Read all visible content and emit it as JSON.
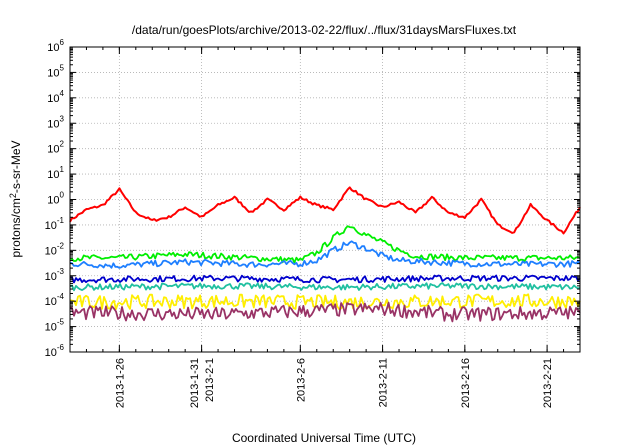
{
  "chart_data": {
    "type": "line",
    "title": "/data/run/goesPlots/archive/2013-02-22/flux/../flux/31daysMarsFluxes.txt",
    "xlabel": "Coordinated Universal Time (UTC)",
    "ylabel": "protons/cm²-s-sr-MeV",
    "y_scale": "log",
    "ylim": [
      1e-06,
      1000000.0
    ],
    "xlim": [
      "2013-01-23",
      "2013-02-23"
    ],
    "y_ticks": [
      "10^-6",
      "10^-5",
      "10^-4",
      "10^-3",
      "10^-2",
      "10^-1",
      "10^0",
      "10^1",
      "10^2",
      "10^3",
      "10^4",
      "10^5",
      "10^6"
    ],
    "x_ticks": [
      {
        "date": "2013-01-26",
        "lines": [
          "2013-1-26"
        ]
      },
      {
        "date": "2013-01-31",
        "lines": [
          "2013-1-31",
          "2013-2-1"
        ]
      },
      {
        "date": "2013-02-06",
        "lines": [
          "2013-2-6"
        ]
      },
      {
        "date": "2013-02-11",
        "lines": [
          "2013-2-11"
        ]
      },
      {
        "date": "2013-02-16",
        "lines": [
          "2013-2-16"
        ]
      },
      {
        "date": "2013-02-21",
        "lines": [
          "2013-2-21"
        ]
      }
    ],
    "grid": true,
    "legend": "none",
    "series": [
      {
        "color": "#ff0000",
        "base": 0.25,
        "variation": "oscillating",
        "points": [
          [
            "2013-01-23",
            0.15
          ],
          [
            "2013-01-24",
            0.4
          ],
          [
            "2013-01-25",
            0.6
          ],
          [
            "2013-01-26",
            2.5
          ],
          [
            "2013-01-27",
            0.3
          ],
          [
            "2013-01-28",
            0.15
          ],
          [
            "2013-01-29",
            0.2
          ],
          [
            "2013-01-30",
            0.5
          ],
          [
            "2013-01-31",
            0.2
          ],
          [
            "2013-02-01",
            0.6
          ],
          [
            "2013-02-02",
            1.2
          ],
          [
            "2013-02-03",
            0.3
          ],
          [
            "2013-02-04",
            1.0
          ],
          [
            "2013-02-05",
            0.4
          ],
          [
            "2013-02-06",
            1.2
          ],
          [
            "2013-02-07",
            0.6
          ],
          [
            "2013-02-08",
            0.4
          ],
          [
            "2013-02-09",
            3.0
          ],
          [
            "2013-02-10",
            1.0
          ],
          [
            "2013-02-11",
            0.5
          ],
          [
            "2013-02-12",
            0.8
          ],
          [
            "2013-02-13",
            0.3
          ],
          [
            "2013-02-14",
            1.2
          ],
          [
            "2013-02-15",
            0.3
          ],
          [
            "2013-02-16",
            0.2
          ],
          [
            "2013-02-17",
            1.0
          ],
          [
            "2013-02-18",
            0.1
          ],
          [
            "2013-02-19",
            0.05
          ],
          [
            "2013-02-20",
            0.6
          ],
          [
            "2013-02-21",
            0.15
          ],
          [
            "2013-02-22",
            0.05
          ],
          [
            "2013-02-23",
            0.5
          ]
        ]
      },
      {
        "color": "#00ee00",
        "points": [
          [
            "2013-01-23",
            0.005
          ],
          [
            "2013-01-26",
            0.005
          ],
          [
            "2013-01-30",
            0.007
          ],
          [
            "2013-02-03",
            0.005
          ],
          [
            "2013-02-06",
            0.004
          ],
          [
            "2013-02-07",
            0.008
          ],
          [
            "2013-02-08",
            0.03
          ],
          [
            "2013-02-09",
            0.1
          ],
          [
            "2013-02-10",
            0.04
          ],
          [
            "2013-02-11",
            0.02
          ],
          [
            "2013-02-12",
            0.01
          ],
          [
            "2013-02-13",
            0.006
          ],
          [
            "2013-02-16",
            0.005
          ],
          [
            "2013-02-20",
            0.005
          ],
          [
            "2013-02-23",
            0.005
          ]
        ]
      },
      {
        "color": "#1e7fff",
        "points": [
          [
            "2013-01-23",
            0.003
          ],
          [
            "2013-01-26",
            0.0025
          ],
          [
            "2013-01-30",
            0.0035
          ],
          [
            "2013-02-03",
            0.0028
          ],
          [
            "2013-02-06",
            0.003
          ],
          [
            "2013-02-07",
            0.004
          ],
          [
            "2013-02-08",
            0.01
          ],
          [
            "2013-02-09",
            0.02
          ],
          [
            "2013-02-10",
            0.012
          ],
          [
            "2013-02-11",
            0.006
          ],
          [
            "2013-02-12",
            0.004
          ],
          [
            "2013-02-16",
            0.003
          ],
          [
            "2013-02-20",
            0.0028
          ],
          [
            "2013-02-23",
            0.003
          ]
        ]
      },
      {
        "color": "#0000cc",
        "points": [
          [
            "2013-01-23",
            0.0007
          ],
          [
            "2013-02-01",
            0.0008
          ],
          [
            "2013-02-08",
            0.0007
          ],
          [
            "2013-02-15",
            0.0008
          ],
          [
            "2013-02-23",
            0.0008
          ]
        ]
      },
      {
        "color": "#20c0a0",
        "points": [
          [
            "2013-01-23",
            0.00035
          ],
          [
            "2013-02-01",
            0.0004
          ],
          [
            "2013-02-08",
            0.00035
          ],
          [
            "2013-02-15",
            0.0004
          ],
          [
            "2013-02-23",
            0.00035
          ]
        ]
      },
      {
        "color": "#ffee00",
        "points": [
          [
            "2013-01-23",
            9e-05
          ],
          [
            "2013-02-01",
            0.0001
          ],
          [
            "2013-02-08",
            9e-05
          ],
          [
            "2013-02-15",
            0.0001
          ],
          [
            "2013-02-23",
            0.0001
          ]
        ]
      },
      {
        "color": "#993366",
        "points": [
          [
            "2013-01-23",
            3.5e-05
          ],
          [
            "2013-02-01",
            3e-05
          ],
          [
            "2013-02-08",
            4.5e-05
          ],
          [
            "2013-02-11",
            5e-05
          ],
          [
            "2013-02-15",
            3e-05
          ],
          [
            "2013-02-23",
            3.5e-05
          ]
        ]
      }
    ]
  }
}
